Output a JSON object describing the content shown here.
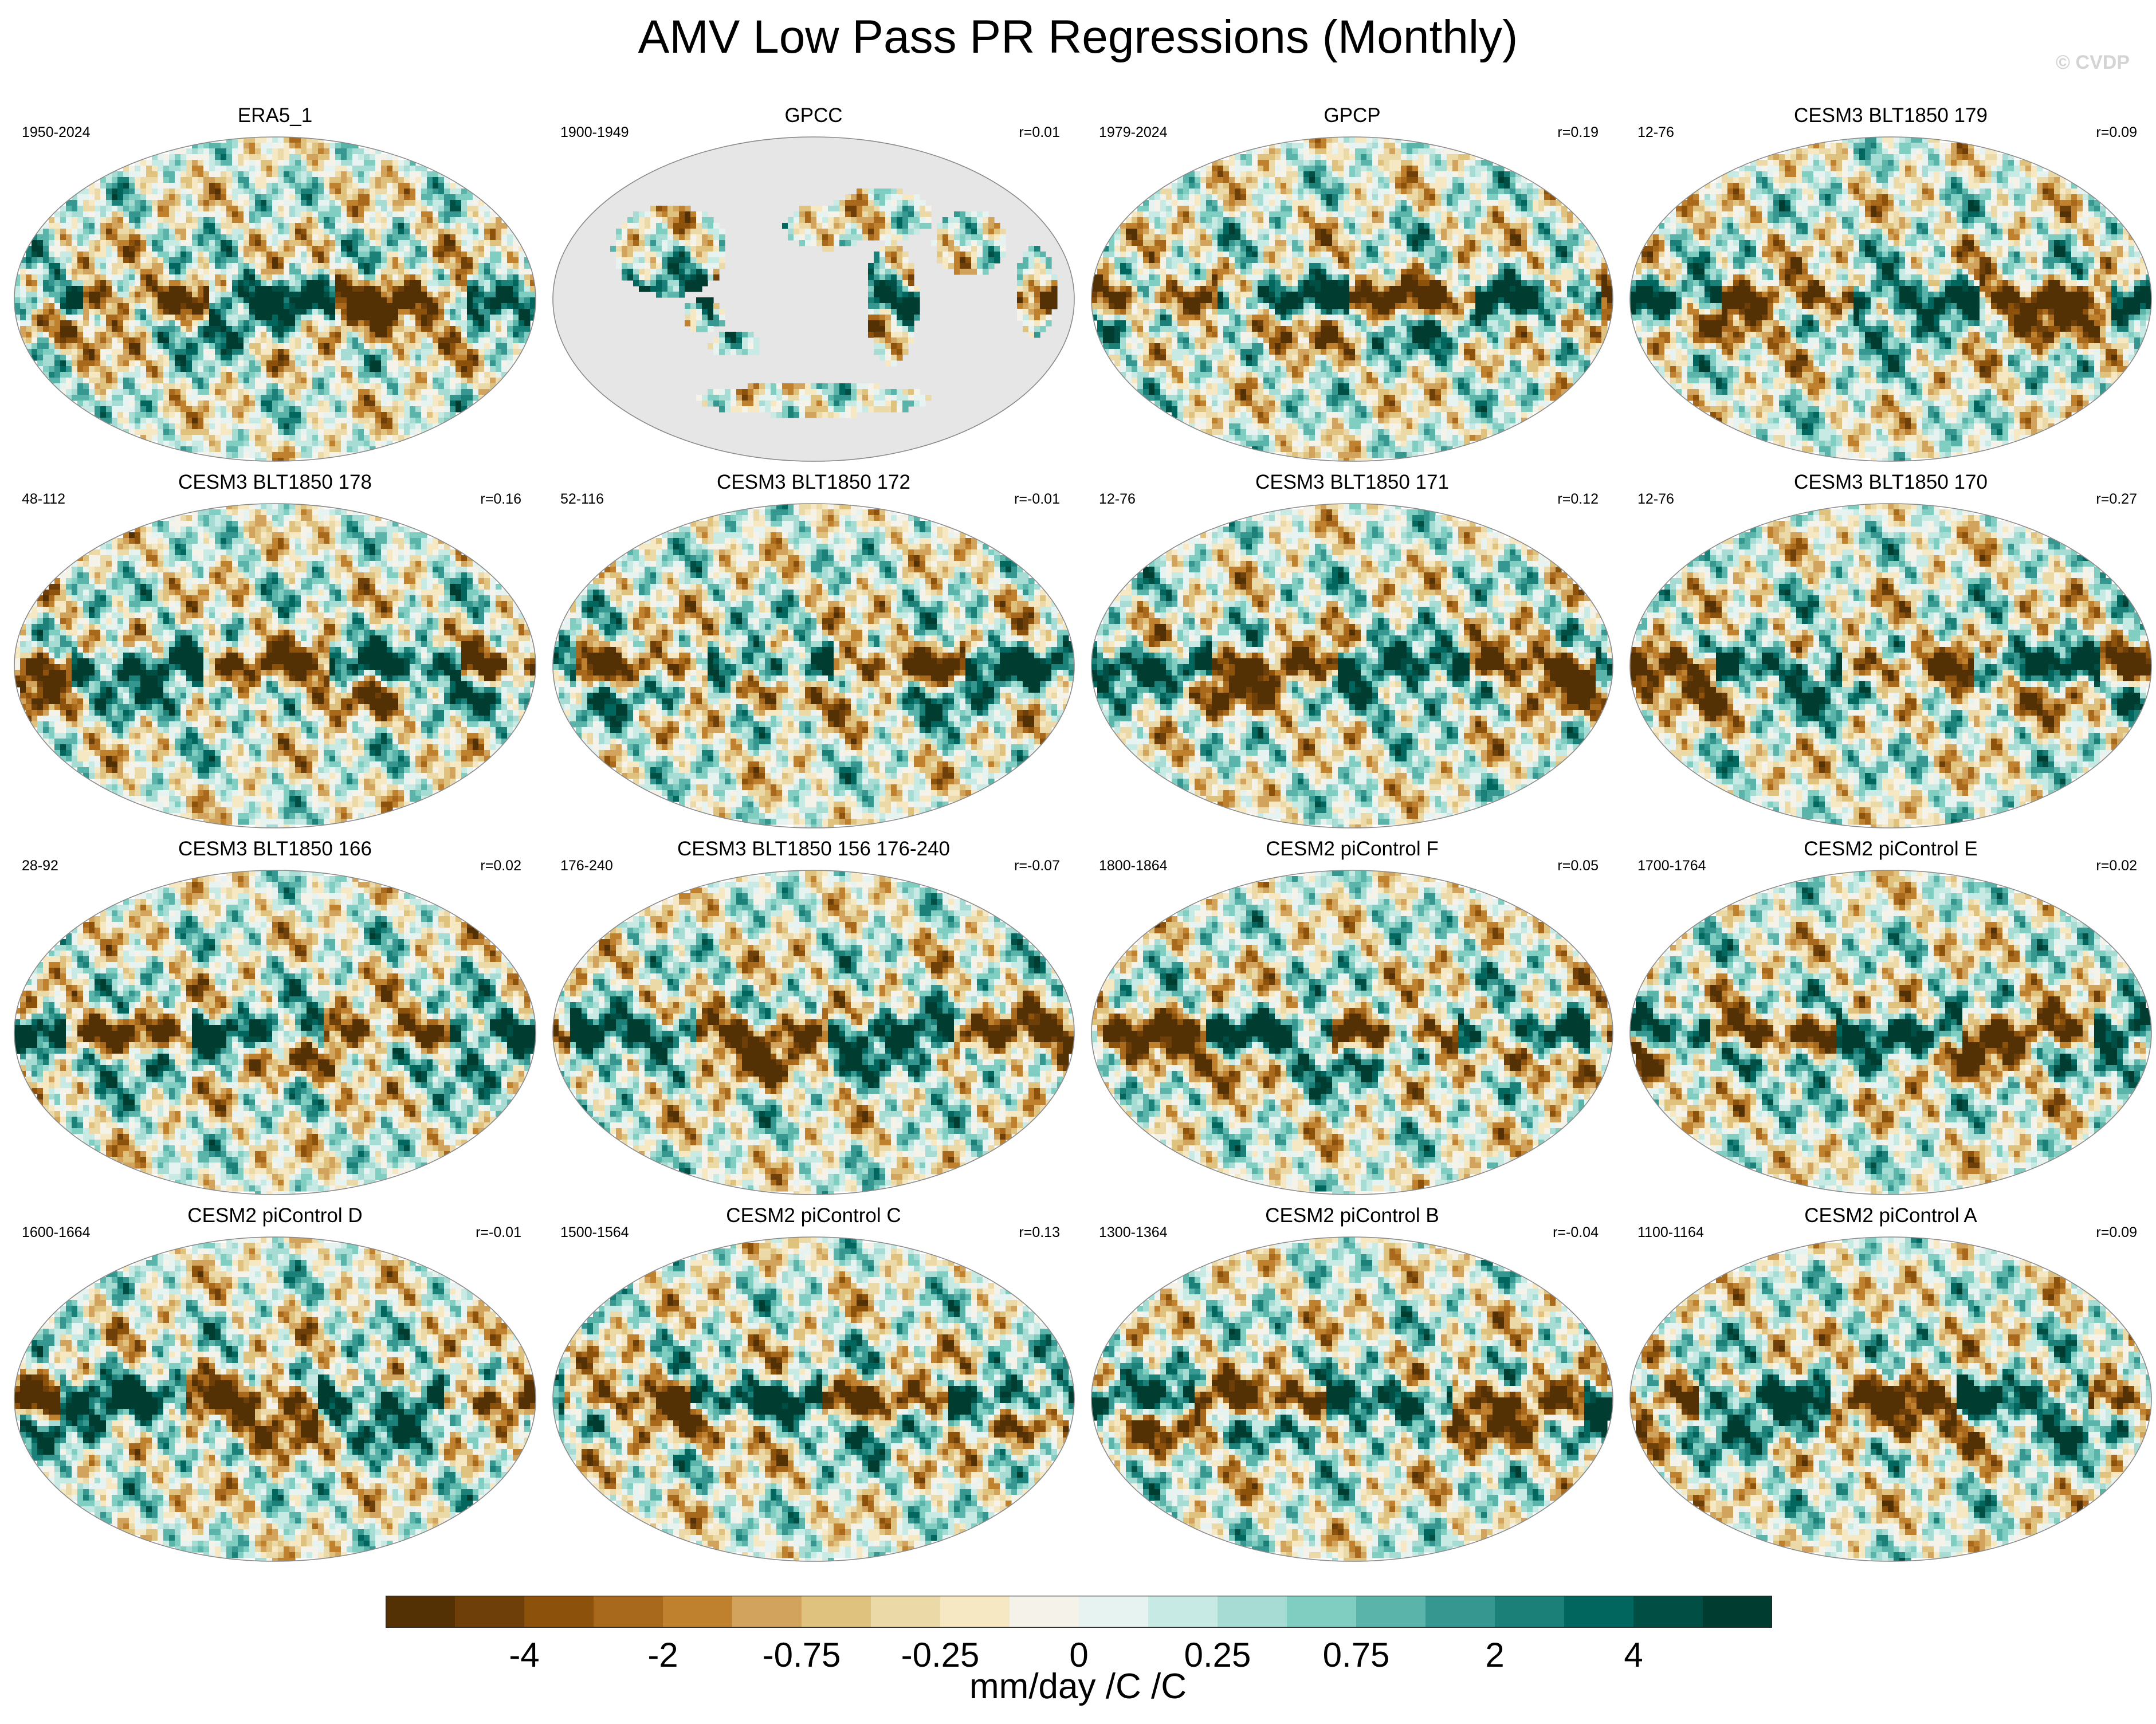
{
  "title": "AMV Low Pass PR Regressions (Monthly)",
  "watermark": "© CVDP",
  "colors": {
    "missing_ocean": "#e6e6e6",
    "coastline": "#8a8a8a",
    "palette": [
      "#543005",
      "#6f3f09",
      "#8c510a",
      "#a8691c",
      "#bf812d",
      "#d1a35c",
      "#dfc27d",
      "#ecd9a8",
      "#f6e8c3",
      "#f5f2ea",
      "#e6f3f1",
      "#c7eae5",
      "#a6dcd3",
      "#80cdc1",
      "#5ab4aa",
      "#35978f",
      "#1b8078",
      "#01665e",
      "#004e44",
      "#003c30"
    ]
  },
  "panels": [
    {
      "title": "ERA5_1",
      "period": "1950-2024",
      "corr": ""
    },
    {
      "title": "GPCC",
      "period": "1900-1949",
      "corr": "r=0.01",
      "land_only": true
    },
    {
      "title": "GPCP",
      "period": "1979-2024",
      "corr": "r=0.19"
    },
    {
      "title": "CESM3 BLT1850 179",
      "period": "12-76",
      "corr": "r=0.09"
    },
    {
      "title": "CESM3 BLT1850 178",
      "period": "48-112",
      "corr": "r=0.16"
    },
    {
      "title": "CESM3 BLT1850 172",
      "period": "52-116",
      "corr": "r=-0.01"
    },
    {
      "title": "CESM3 BLT1850 171",
      "period": "12-76",
      "corr": "r=0.12"
    },
    {
      "title": "CESM3 BLT1850 170",
      "period": "12-76",
      "corr": "r=0.27"
    },
    {
      "title": "CESM3 BLT1850 166",
      "period": "28-92",
      "corr": "r=0.02"
    },
    {
      "title": "CESM3 BLT1850 156 176-240",
      "period": "176-240",
      "corr": "r=-0.07"
    },
    {
      "title": "CESM2 piControl F",
      "period": "1800-1864",
      "corr": "r=0.05"
    },
    {
      "title": "CESM2 piControl E",
      "period": "1700-1764",
      "corr": "r=0.02"
    },
    {
      "title": "CESM2 piControl D",
      "period": "1600-1664",
      "corr": "r=-0.01"
    },
    {
      "title": "CESM2 piControl C",
      "period": "1500-1564",
      "corr": "r=0.13"
    },
    {
      "title": "CESM2 piControl B",
      "period": "1300-1364",
      "corr": "r=-0.04"
    },
    {
      "title": "CESM2 piControl A",
      "period": "1100-1164",
      "corr": "r=0.09"
    }
  ],
  "colorbar": {
    "ticks": [
      "-4",
      "-2",
      "-0.75",
      "-0.25",
      "0",
      "0.25",
      "0.75",
      "2",
      "4"
    ],
    "label": "mm/day /C /C"
  }
}
